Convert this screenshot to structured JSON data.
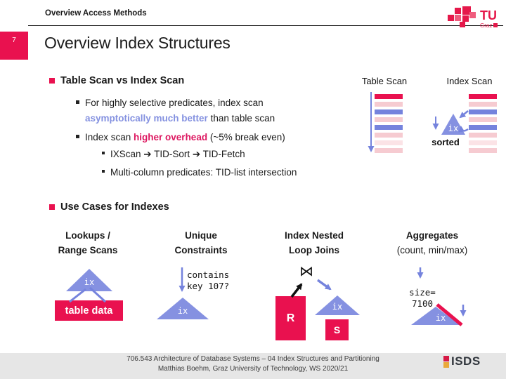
{
  "colors": {
    "accent": "#e9114f",
    "bar_blue": "#7583dd",
    "triangle_blue": "#8591e1",
    "pink": "#f6cbd1",
    "light_pink": "#fbe3e6",
    "highlight_blue": "#8491e0",
    "highlight_red": "#dd1760",
    "footer_bg": "#e6e6e6",
    "isds_red": "#d61a46",
    "isds_gold": "#e9a83b"
  },
  "header": {
    "eyebrow": "Overview Access Methods",
    "slide_number": "7",
    "title": "Overview Index Structures",
    "tu_logo_text": "TU",
    "tu_logo_sub": "Graz"
  },
  "section1": {
    "heading": "Table Scan vs Index Scan",
    "bullet1_line1": "For highly selective predicates, index scan",
    "bullet1_highlight": "asymptotically much better",
    "bullet1_tail": " than table scan",
    "bullet2_pre": "Index scan ",
    "bullet2_highlight": "higher overhead",
    "bullet2_tail": " (~5% break even)",
    "bullet3": "IXScan ➔ TID-Sort ➔ TID-Fetch",
    "bullet4": "Multi-column predicates: TID-list intersection"
  },
  "scan_diagram": {
    "table_scan_label": "Table Scan",
    "index_scan_label": "Index Scan",
    "ix_label": "ix",
    "sorted_label": "sorted",
    "row_pattern": [
      "red",
      "pink",
      "blue",
      "pink",
      "blue",
      "pink",
      "lightpink",
      "pink"
    ]
  },
  "section2": {
    "heading": "Use Cases for Indexes",
    "columns": [
      {
        "title_line1": "Lookups /",
        "title_line2": "Range Scans"
      },
      {
        "title_line1": "Unique",
        "title_line2": "Constraints"
      },
      {
        "title_line1": "Index Nested",
        "title_line2": "Loop Joins"
      },
      {
        "title_line1": "Aggregates",
        "title_line2": "(count, min/max)"
      }
    ],
    "lookup": {
      "ix_label": "ix",
      "box_label": "table data"
    },
    "unique": {
      "query_line1": "contains",
      "query_line2": "key 107?",
      "ix_label": "ix"
    },
    "join": {
      "join_symbol": "⋈",
      "left_label": "R",
      "right_label": "S",
      "ix_label": "ix"
    },
    "aggregate": {
      "size_line1": "size=",
      "size_line2": "7100",
      "ix_label": "ix"
    }
  },
  "footer": {
    "line1": "706.543 Architecture of Database Systems – 04 Index Structures and Partitioning",
    "line2": "Matthias Boehm, Graz University of Technology, WS 2020/21",
    "logo_text": "ISDS"
  }
}
